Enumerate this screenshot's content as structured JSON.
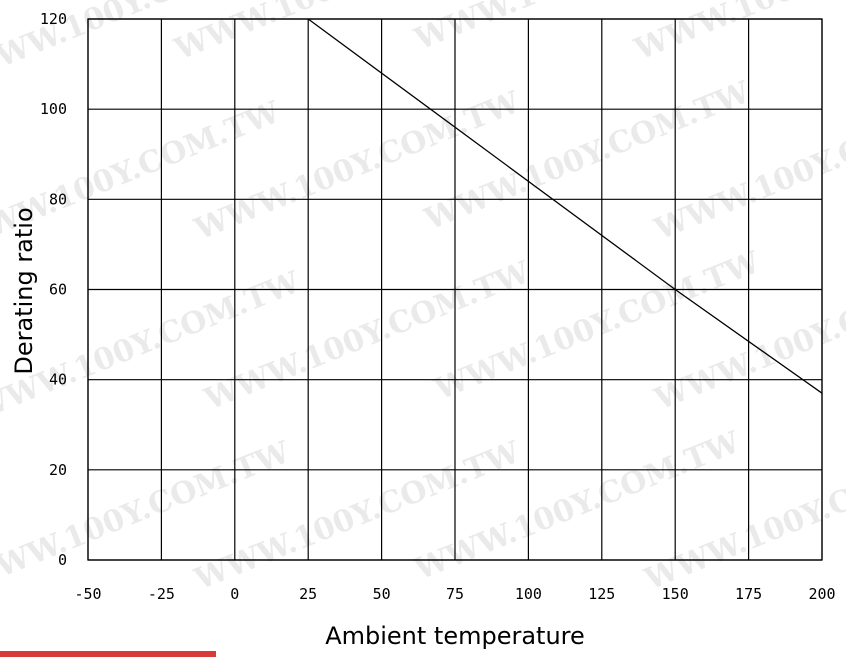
{
  "chart_data": {
    "type": "line",
    "title": "",
    "xlabel": "Ambient temperature",
    "ylabel": "Derating ratio",
    "xlim": [
      -50,
      200
    ],
    "ylim": [
      0,
      120
    ],
    "x_ticks": [
      "-50",
      "-25",
      "0",
      "25",
      "50",
      "75",
      "100",
      "125",
      "150",
      "175",
      "200"
    ],
    "y_ticks": [
      "0",
      "20",
      "40",
      "60",
      "80",
      "100",
      "120"
    ],
    "grid": true,
    "series": [
      {
        "x": [
          25,
          150,
          200
        ],
        "y": [
          120,
          60,
          37
        ]
      }
    ]
  },
  "watermark": "WWW.100Y.COM.TW",
  "colors": {
    "line": "#000000",
    "grid": "#000000",
    "watermark": "#d9d9d9",
    "bar": "#d93a3a"
  }
}
